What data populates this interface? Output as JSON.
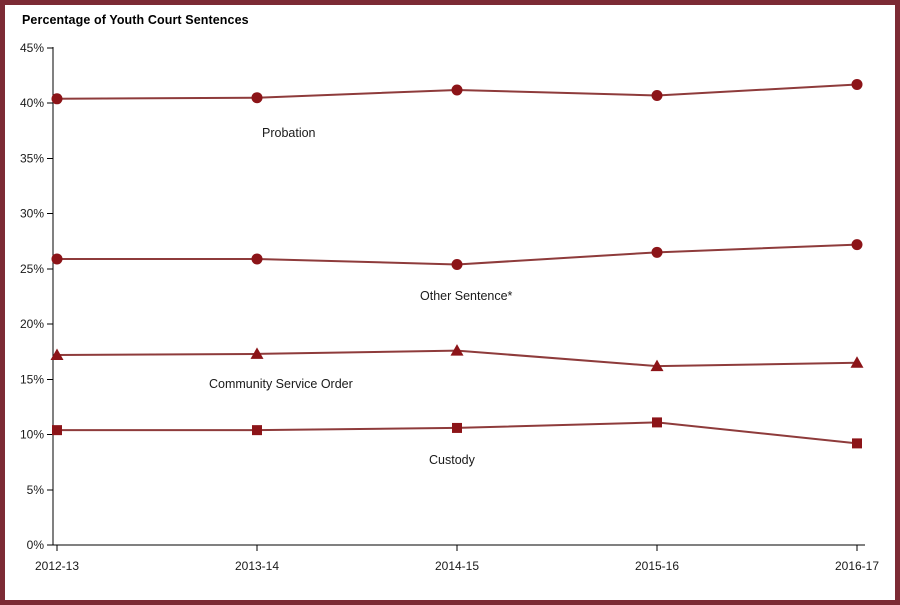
{
  "title": "Percentage of Youth Court Sentences",
  "chart_data": {
    "type": "line",
    "title": "Percentage of Youth Court Sentences",
    "categories": [
      "2012-13",
      "2013-14",
      "2014-15",
      "2015-16",
      "2016-17"
    ],
    "xlabel": "",
    "ylabel": "Percentage of Youth Court Sentences",
    "y_axis": {
      "min": 0,
      "max": 45,
      "step": 5,
      "tick_labels": [
        "0%",
        "5%",
        "10%",
        "15%",
        "20%",
        "25%",
        "30%",
        "35%",
        "40%",
        "45%"
      ]
    },
    "grid": false,
    "legend_position": "inline-annotations",
    "series": [
      {
        "name": "Probation",
        "marker": "circle",
        "values": [
          40.4,
          40.5,
          41.2,
          40.7,
          41.7
        ]
      },
      {
        "name": "Other Sentence*",
        "marker": "circle",
        "values": [
          25.9,
          25.9,
          25.4,
          26.5,
          27.2
        ]
      },
      {
        "name": "Community Service Order",
        "marker": "triangle",
        "values": [
          17.2,
          17.3,
          17.6,
          16.2,
          16.5
        ]
      },
      {
        "name": "Custody",
        "marker": "square",
        "values": [
          10.4,
          10.4,
          10.6,
          11.1,
          9.2
        ]
      }
    ],
    "colors": {
      "line": "#8e3b3b",
      "marker": "#8c1418",
      "frame_border": "#7c2b35",
      "axis": "#000000",
      "text": "#1a1a1a"
    }
  }
}
